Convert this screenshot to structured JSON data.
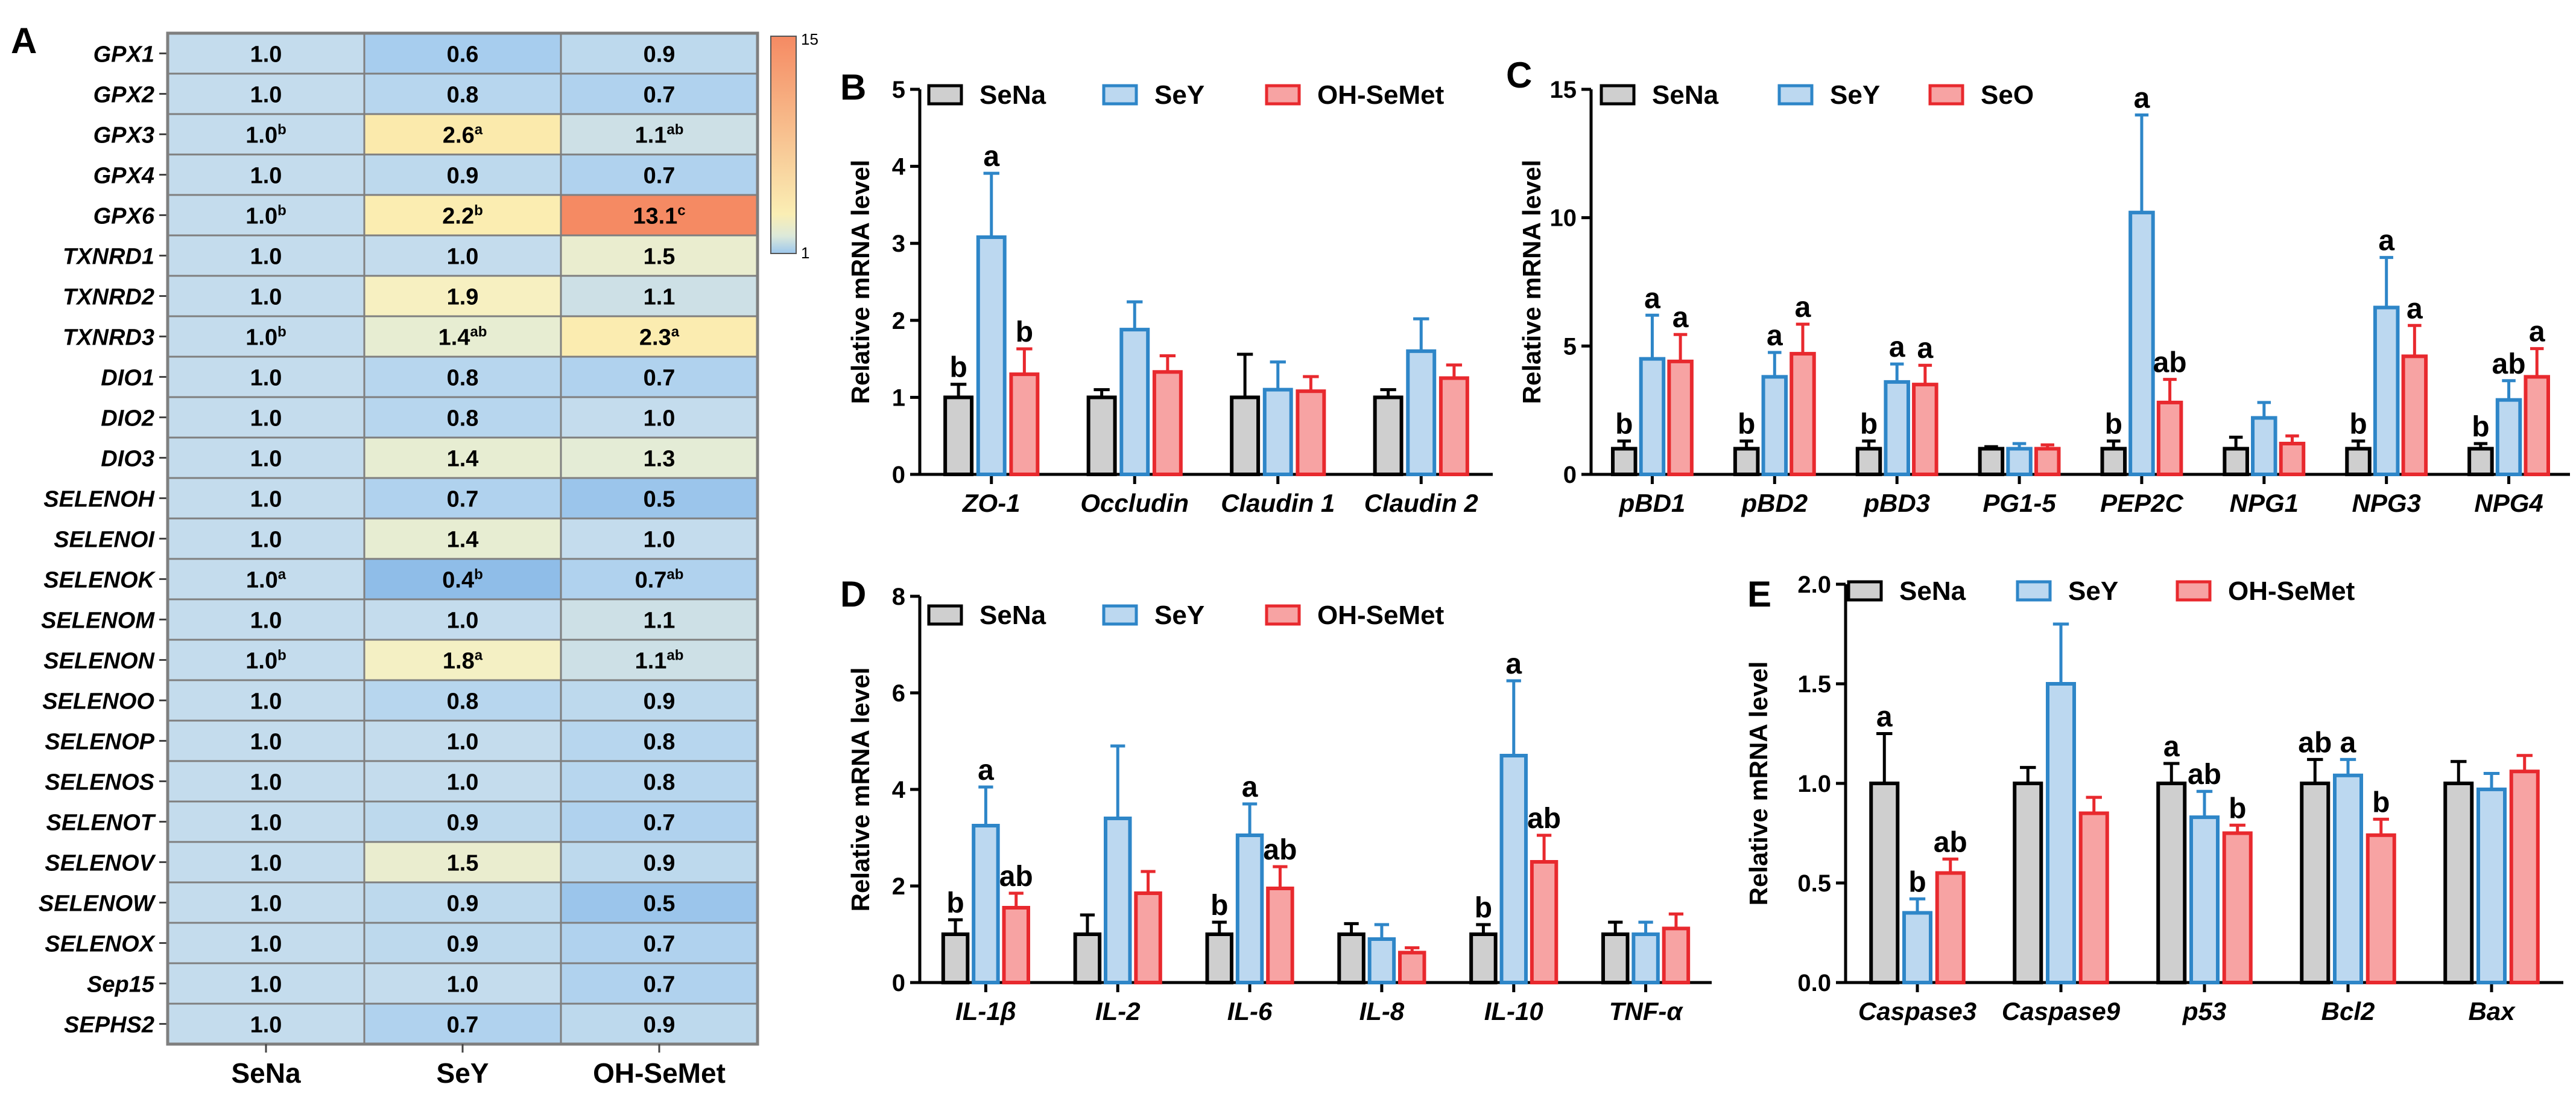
{
  "colors": {
    "sena_fill": "#cfcfcf",
    "sena_stroke": "#000000",
    "sey_fill": "#bcd8f0",
    "sey_stroke": "#2e86c8",
    "ohsemet_fill": "#f7a3a3",
    "ohsemet_stroke": "#e8292e",
    "heat_low": "#9cc7ec",
    "heat_mid": "#faeeb4",
    "heat_high": "#f58a63",
    "grid": "#7f7f7f"
  },
  "chart_data": [
    {
      "id": "A",
      "panel_label": "A",
      "type": "heatmap",
      "columns": [
        "SeNa",
        "SeY",
        "OH-SeMet"
      ],
      "colorbar": {
        "min": 1,
        "max": 15,
        "min_label": "1",
        "max_label": "15"
      },
      "rows": [
        {
          "gene": "GPX1",
          "cells": [
            {
              "v": "1.0",
              "s": ""
            },
            {
              "v": "0.6",
              "s": ""
            },
            {
              "v": "0.9",
              "s": ""
            }
          ]
        },
        {
          "gene": "GPX2",
          "cells": [
            {
              "v": "1.0",
              "s": ""
            },
            {
              "v": "0.8",
              "s": ""
            },
            {
              "v": "0.7",
              "s": ""
            }
          ]
        },
        {
          "gene": "GPX3",
          "cells": [
            {
              "v": "1.0",
              "s": "b"
            },
            {
              "v": "2.6",
              "s": "a"
            },
            {
              "v": "1.1",
              "s": "ab"
            }
          ]
        },
        {
          "gene": "GPX4",
          "cells": [
            {
              "v": "1.0",
              "s": ""
            },
            {
              "v": "0.9",
              "s": ""
            },
            {
              "v": "0.7",
              "s": ""
            }
          ]
        },
        {
          "gene": "GPX6",
          "cells": [
            {
              "v": "1.0",
              "s": "b"
            },
            {
              "v": "2.2",
              "s": "b"
            },
            {
              "v": "13.1",
              "s": "c"
            }
          ]
        },
        {
          "gene": "TXNRD1",
          "cells": [
            {
              "v": "1.0",
              "s": ""
            },
            {
              "v": "1.0",
              "s": ""
            },
            {
              "v": "1.5",
              "s": ""
            }
          ]
        },
        {
          "gene": "TXNRD2",
          "cells": [
            {
              "v": "1.0",
              "s": ""
            },
            {
              "v": "1.9",
              "s": ""
            },
            {
              "v": "1.1",
              "s": ""
            }
          ]
        },
        {
          "gene": "TXNRD3",
          "cells": [
            {
              "v": "1.0",
              "s": "b"
            },
            {
              "v": "1.4",
              "s": "ab"
            },
            {
              "v": "2.3",
              "s": "a"
            }
          ]
        },
        {
          "gene": "DIO1",
          "cells": [
            {
              "v": "1.0",
              "s": ""
            },
            {
              "v": "0.8",
              "s": ""
            },
            {
              "v": "0.7",
              "s": ""
            }
          ]
        },
        {
          "gene": "DIO2",
          "cells": [
            {
              "v": "1.0",
              "s": ""
            },
            {
              "v": "0.8",
              "s": ""
            },
            {
              "v": "1.0",
              "s": ""
            }
          ]
        },
        {
          "gene": "DIO3",
          "cells": [
            {
              "v": "1.0",
              "s": ""
            },
            {
              "v": "1.4",
              "s": ""
            },
            {
              "v": "1.3",
              "s": ""
            }
          ]
        },
        {
          "gene": "SELENOH",
          "cells": [
            {
              "v": "1.0",
              "s": ""
            },
            {
              "v": "0.7",
              "s": ""
            },
            {
              "v": "0.5",
              "s": ""
            }
          ]
        },
        {
          "gene": "SELENOI",
          "cells": [
            {
              "v": "1.0",
              "s": ""
            },
            {
              "v": "1.4",
              "s": ""
            },
            {
              "v": "1.0",
              "s": ""
            }
          ]
        },
        {
          "gene": "SELENOK",
          "cells": [
            {
              "v": "1.0",
              "s": "a"
            },
            {
              "v": "0.4",
              "s": "b"
            },
            {
              "v": "0.7",
              "s": "ab"
            }
          ]
        },
        {
          "gene": "SELENOM",
          "cells": [
            {
              "v": "1.0",
              "s": ""
            },
            {
              "v": "1.0",
              "s": ""
            },
            {
              "v": "1.1",
              "s": ""
            }
          ]
        },
        {
          "gene": "SELENON",
          "cells": [
            {
              "v": "1.0",
              "s": "b"
            },
            {
              "v": "1.8",
              "s": "a"
            },
            {
              "v": "1.1",
              "s": "ab"
            }
          ]
        },
        {
          "gene": "SELENOO",
          "cells": [
            {
              "v": "1.0",
              "s": ""
            },
            {
              "v": "0.8",
              "s": ""
            },
            {
              "v": "0.9",
              "s": ""
            }
          ]
        },
        {
          "gene": "SELENOP",
          "cells": [
            {
              "v": "1.0",
              "s": ""
            },
            {
              "v": "1.0",
              "s": ""
            },
            {
              "v": "0.8",
              "s": ""
            }
          ]
        },
        {
          "gene": "SELENOS",
          "cells": [
            {
              "v": "1.0",
              "s": ""
            },
            {
              "v": "1.0",
              "s": ""
            },
            {
              "v": "0.8",
              "s": ""
            }
          ]
        },
        {
          "gene": "SELENOT",
          "cells": [
            {
              "v": "1.0",
              "s": ""
            },
            {
              "v": "0.9",
              "s": ""
            },
            {
              "v": "0.7",
              "s": ""
            }
          ]
        },
        {
          "gene": "SELENOV",
          "cells": [
            {
              "v": "1.0",
              "s": ""
            },
            {
              "v": "1.5",
              "s": ""
            },
            {
              "v": "0.9",
              "s": ""
            }
          ]
        },
        {
          "gene": "SELENOW",
          "cells": [
            {
              "v": "1.0",
              "s": ""
            },
            {
              "v": "0.9",
              "s": ""
            },
            {
              "v": "0.5",
              "s": ""
            }
          ]
        },
        {
          "gene": "SELENOX",
          "cells": [
            {
              "v": "1.0",
              "s": ""
            },
            {
              "v": "0.9",
              "s": ""
            },
            {
              "v": "0.7",
              "s": ""
            }
          ]
        },
        {
          "gene": "Sep15",
          "cells": [
            {
              "v": "1.0",
              "s": ""
            },
            {
              "v": "1.0",
              "s": ""
            },
            {
              "v": "0.7",
              "s": ""
            }
          ]
        },
        {
          "gene": "SEPHS2",
          "cells": [
            {
              "v": "1.0",
              "s": ""
            },
            {
              "v": "0.7",
              "s": ""
            },
            {
              "v": "0.9",
              "s": ""
            }
          ]
        }
      ]
    },
    {
      "id": "B",
      "panel_label": "B",
      "type": "bar",
      "ylabel": "Relative mRNA level",
      "ylim": [
        0,
        5
      ],
      "ticks": [
        0,
        1,
        2,
        3,
        4,
        5
      ],
      "tick_labels": [
        "0",
        "1",
        "2",
        "3",
        "4",
        "5"
      ],
      "categories": [
        "ZO-1",
        "Occludin",
        "Claudin 1",
        "Claudin 2"
      ],
      "series": [
        {
          "name": "SeNa",
          "values": [
            1.0,
            1.0,
            1.0,
            1.0
          ],
          "errors": [
            0.17,
            0.1,
            0.56,
            0.1
          ],
          "letters": [
            "b",
            "",
            "",
            ""
          ]
        },
        {
          "name": "SeY",
          "values": [
            3.08,
            1.88,
            1.1,
            1.6
          ],
          "errors": [
            0.83,
            0.36,
            0.36,
            0.42
          ],
          "letters": [
            "a",
            "",
            "",
            ""
          ]
        },
        {
          "name": "OH-SeMet",
          "values": [
            1.3,
            1.33,
            1.08,
            1.25
          ],
          "errors": [
            0.33,
            0.21,
            0.19,
            0.17
          ],
          "letters": [
            "b",
            "",
            "",
            ""
          ]
        }
      ]
    },
    {
      "id": "C",
      "panel_label": "C",
      "type": "bar",
      "ylabel": "Relative mRNA level",
      "ylim": [
        0,
        15
      ],
      "ticks": [
        0,
        5,
        10,
        15
      ],
      "tick_labels": [
        "0",
        "5",
        "10",
        "15"
      ],
      "categories": [
        "pBD1",
        "pBD2",
        "pBD3",
        "PG1-5",
        "PEP2C",
        "NPG1",
        "NPG3",
        "NPG4"
      ],
      "series": [
        {
          "name": "SeNa",
          "values": [
            1.0,
            1.0,
            1.0,
            1.0,
            1.0,
            1.0,
            1.0,
            1.0
          ],
          "errors": [
            0.3,
            0.3,
            0.3,
            0.08,
            0.3,
            0.45,
            0.3,
            0.2
          ],
          "letters": [
            "b",
            "b",
            "b",
            "",
            "b",
            "",
            "b",
            "b"
          ]
        },
        {
          "name": "SeY",
          "values": [
            4.5,
            3.8,
            3.6,
            1.0,
            10.2,
            2.2,
            6.5,
            2.9
          ],
          "errors": [
            1.7,
            0.95,
            0.7,
            0.2,
            3.8,
            0.6,
            1.95,
            0.75
          ],
          "letters": [
            "a",
            "a",
            "a",
            "",
            "a",
            "",
            "a",
            "ab"
          ]
        },
        {
          "name": "SeO",
          "values": [
            4.4,
            4.7,
            3.5,
            1.0,
            2.8,
            1.2,
            4.6,
            3.8
          ],
          "errors": [
            1.05,
            1.15,
            0.75,
            0.15,
            0.9,
            0.3,
            1.2,
            1.1
          ],
          "letters": [
            "a",
            "a",
            "a",
            "",
            "ab",
            "",
            "a",
            "a"
          ]
        }
      ]
    },
    {
      "id": "D",
      "panel_label": "D",
      "type": "bar",
      "ylabel": "Relative mRNA level",
      "ylim": [
        0,
        8
      ],
      "ticks": [
        0,
        2,
        4,
        6,
        8
      ],
      "tick_labels": [
        "0",
        "2",
        "4",
        "6",
        "8"
      ],
      "categories": [
        "IL-1β",
        "IL-2",
        "IL-6",
        "IL-8",
        "IL-10",
        "TNF-α"
      ],
      "series": [
        {
          "name": "SeNa",
          "values": [
            1.0,
            1.0,
            1.0,
            1.0,
            1.0,
            1.0
          ],
          "errors": [
            0.3,
            0.4,
            0.25,
            0.22,
            0.2,
            0.25
          ],
          "letters": [
            "b",
            "",
            "b",
            "",
            "b",
            ""
          ]
        },
        {
          "name": "SeY",
          "values": [
            3.25,
            3.4,
            3.05,
            0.9,
            4.7,
            1.0
          ],
          "errors": [
            0.8,
            1.5,
            0.65,
            0.3,
            1.55,
            0.25
          ],
          "letters": [
            "a",
            "",
            "a",
            "",
            "a",
            ""
          ]
        },
        {
          "name": "OH-SeMet",
          "values": [
            1.55,
            1.85,
            1.95,
            0.62,
            2.5,
            1.12
          ],
          "errors": [
            0.3,
            0.45,
            0.45,
            0.1,
            0.55,
            0.3
          ],
          "letters": [
            "ab",
            "",
            "ab",
            "",
            "ab",
            ""
          ]
        }
      ]
    },
    {
      "id": "E",
      "panel_label": "E",
      "type": "bar",
      "ylabel": "Relative mRNA level",
      "ylim": [
        0,
        2.0
      ],
      "ticks": [
        0,
        0.5,
        1.0,
        1.5,
        2.0
      ],
      "tick_labels": [
        "0.0",
        "0.5",
        "1.0",
        "1.5",
        "2.0"
      ],
      "categories": [
        "Caspase3",
        "Caspase9",
        "p53",
        "Bcl2",
        "Bax"
      ],
      "series": [
        {
          "name": "SeNa",
          "values": [
            1.0,
            1.0,
            1.0,
            1.0,
            1.0
          ],
          "errors": [
            0.25,
            0.08,
            0.1,
            0.12,
            0.11
          ],
          "letters": [
            "a",
            "",
            "a",
            "ab",
            ""
          ]
        },
        {
          "name": "SeY",
          "values": [
            0.35,
            1.5,
            0.83,
            1.04,
            0.97
          ],
          "errors": [
            0.07,
            0.3,
            0.13,
            0.08,
            0.08
          ],
          "letters": [
            "b",
            "",
            "ab",
            "a",
            ""
          ]
        },
        {
          "name": "OH-SeMet",
          "values": [
            0.55,
            0.85,
            0.75,
            0.74,
            1.06
          ],
          "errors": [
            0.07,
            0.08,
            0.04,
            0.08,
            0.08
          ],
          "letters": [
            "ab",
            "",
            "b",
            "b",
            ""
          ]
        }
      ]
    }
  ]
}
